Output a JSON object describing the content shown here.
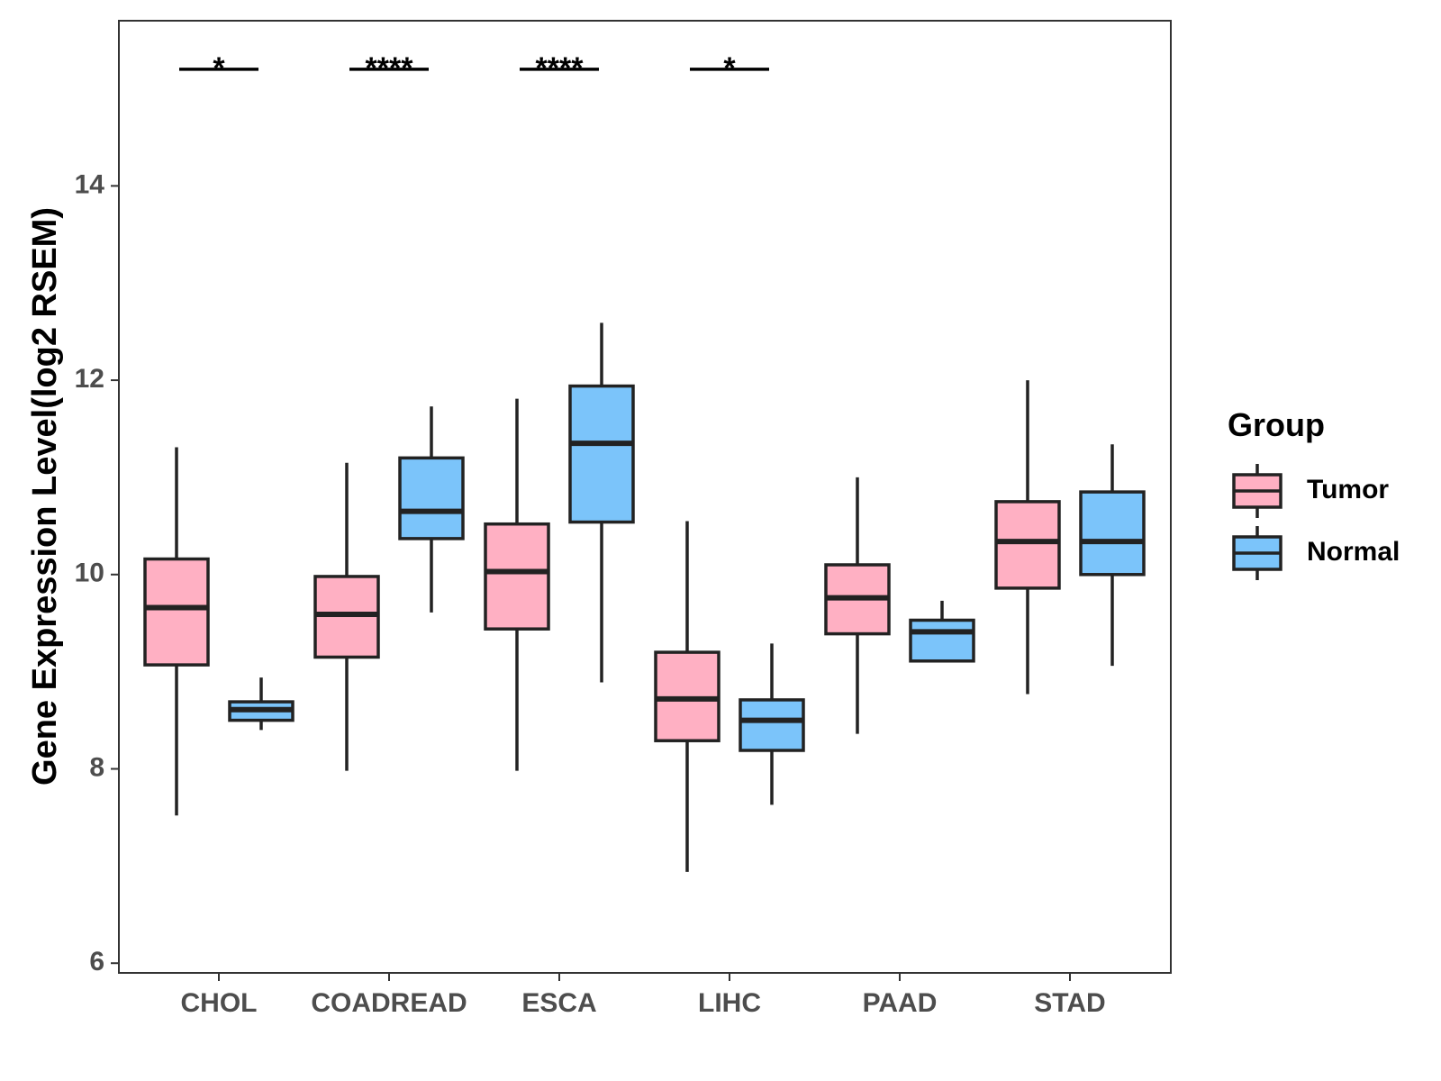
{
  "chart_data": {
    "type": "box",
    "title": "",
    "xlabel": "",
    "ylabel": "Gene Expression Level(log2 RSEM)",
    "ylim": [
      5.9,
      15.7
    ],
    "yticks": [
      6,
      8,
      10,
      12,
      14
    ],
    "categories": [
      "CHOL",
      "COADREAD",
      "ESCA",
      "LIHC",
      "PAAD",
      "STAD"
    ],
    "series": [
      {
        "name": "Tumor",
        "color": "#FFB0C3",
        "boxes": [
          {
            "whisker_low": 7.52,
            "q1": 9.07,
            "median": 9.66,
            "q3": 10.16,
            "whisker_high": 11.31
          },
          {
            "whisker_low": 7.98,
            "q1": 9.15,
            "median": 9.59,
            "q3": 9.98,
            "whisker_high": 11.15
          },
          {
            "whisker_low": 7.98,
            "q1": 9.44,
            "median": 10.03,
            "q3": 10.52,
            "whisker_high": 11.81
          },
          {
            "whisker_low": 6.94,
            "q1": 8.29,
            "median": 8.72,
            "q3": 9.2,
            "whisker_high": 10.55
          },
          {
            "whisker_low": 8.36,
            "q1": 9.39,
            "median": 9.76,
            "q3": 10.1,
            "whisker_high": 11.0
          },
          {
            "whisker_low": 8.77,
            "q1": 9.86,
            "median": 10.34,
            "q3": 10.75,
            "whisker_high": 12.0
          }
        ]
      },
      {
        "name": "Normal",
        "color": "#7BC4FA",
        "boxes": [
          {
            "whisker_low": 8.4,
            "q1": 8.5,
            "median": 8.61,
            "q3": 8.69,
            "whisker_high": 8.94
          },
          {
            "whisker_low": 9.61,
            "q1": 10.37,
            "median": 10.65,
            "q3": 11.2,
            "whisker_high": 11.73
          },
          {
            "whisker_low": 8.89,
            "q1": 10.54,
            "median": 11.35,
            "q3": 11.94,
            "whisker_high": 12.59
          },
          {
            "whisker_low": 7.63,
            "q1": 8.19,
            "median": 8.5,
            "q3": 8.71,
            "whisker_high": 9.29
          },
          {
            "whisker_low": 9.11,
            "q1": 9.11,
            "median": 9.41,
            "q3": 9.53,
            "whisker_high": 9.73
          },
          {
            "whisker_low": 9.06,
            "q1": 10.0,
            "median": 10.34,
            "q3": 10.85,
            "whisker_high": 11.34
          }
        ]
      }
    ],
    "significance": [
      {
        "category": "CHOL",
        "label": "*",
        "y": 15.2
      },
      {
        "category": "COADREAD",
        "label": "****",
        "y": 15.2
      },
      {
        "category": "ESCA",
        "label": "****",
        "y": 15.2
      },
      {
        "category": "LIHC",
        "label": "*",
        "y": 15.2
      }
    ],
    "legend": {
      "title": "Group",
      "position": "right",
      "entries": [
        "Tumor",
        "Normal"
      ]
    }
  }
}
